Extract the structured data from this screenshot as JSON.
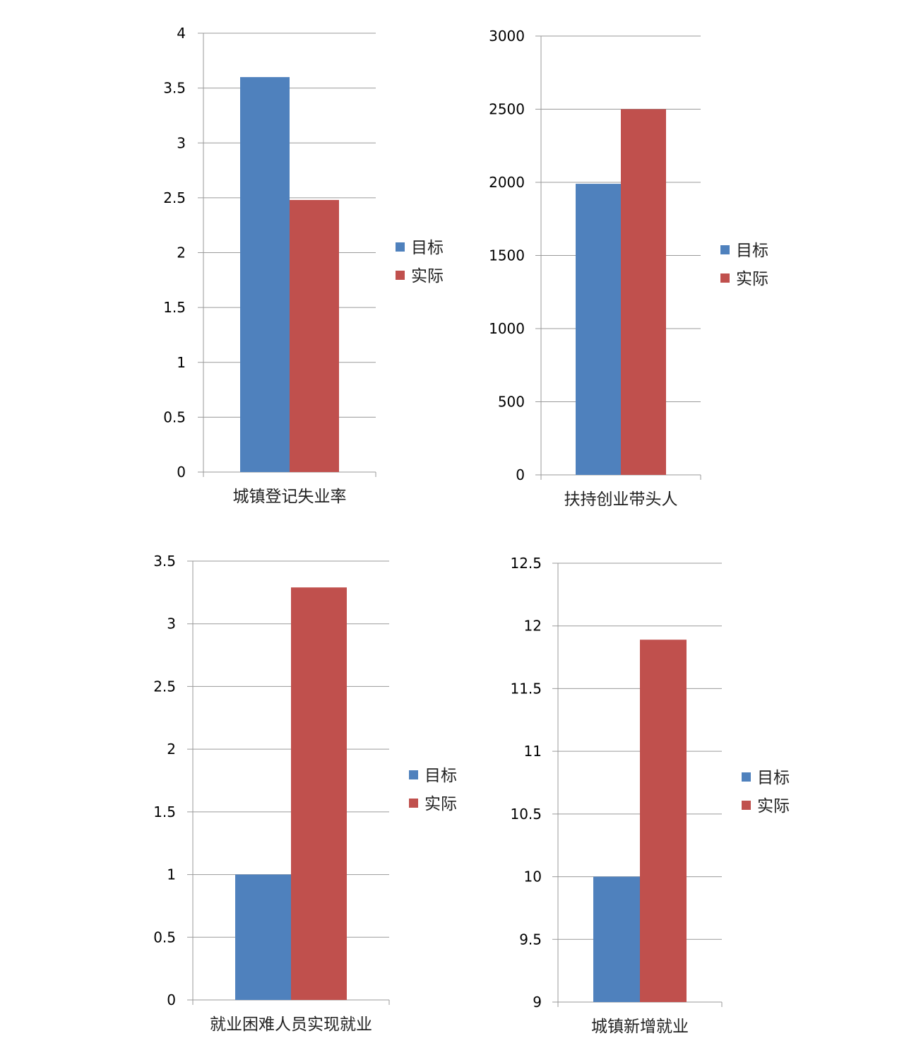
{
  "chart_data": [
    {
      "type": "bar",
      "categories": [
        "城镇登记失业率"
      ],
      "series": [
        {
          "name": "目标",
          "values": [
            3.6
          ]
        },
        {
          "name": "实际",
          "values": [
            2.48
          ]
        }
      ],
      "ylim": [
        0,
        4
      ],
      "yticks": [
        "0",
        "0.5",
        "1",
        "1.5",
        "2",
        "2.5",
        "3",
        "3.5",
        "4"
      ],
      "grid": true,
      "legend": "right",
      "colors": [
        "#4f81bd",
        "#c0504d"
      ]
    },
    {
      "type": "bar",
      "categories": [
        "扶持创业带头人"
      ],
      "series": [
        {
          "name": "目标",
          "values": [
            1990
          ]
        },
        {
          "name": "实际",
          "values": [
            2500
          ]
        }
      ],
      "ylim": [
        0,
        3000
      ],
      "yticks": [
        "0",
        "500",
        "1000",
        "1500",
        "2000",
        "2500",
        "3000"
      ],
      "grid": true,
      "legend": "right",
      "colors": [
        "#4f81bd",
        "#c0504d"
      ]
    },
    {
      "type": "bar",
      "categories": [
        "就业困难人员实现就业"
      ],
      "series": [
        {
          "name": "目标",
          "values": [
            1
          ]
        },
        {
          "name": "实际",
          "values": [
            3.29
          ]
        }
      ],
      "ylim": [
        0,
        3.5
      ],
      "yticks": [
        "0",
        "0.5",
        "1",
        "1.5",
        "2",
        "2.5",
        "3",
        "3.5"
      ],
      "grid": true,
      "legend": "right",
      "colors": [
        "#4f81bd",
        "#c0504d"
      ]
    },
    {
      "type": "bar",
      "categories": [
        "城镇新增就业"
      ],
      "series": [
        {
          "name": "目标",
          "values": [
            10
          ]
        },
        {
          "name": "实际",
          "values": [
            11.89
          ]
        }
      ],
      "ylim": [
        9,
        12.5
      ],
      "yticks": [
        "9",
        "9.5",
        "10",
        "10.5",
        "11",
        "11.5",
        "12",
        "12.5"
      ],
      "grid": true,
      "legend": "right",
      "colors": [
        "#4f81bd",
        "#c0504d"
      ]
    }
  ]
}
